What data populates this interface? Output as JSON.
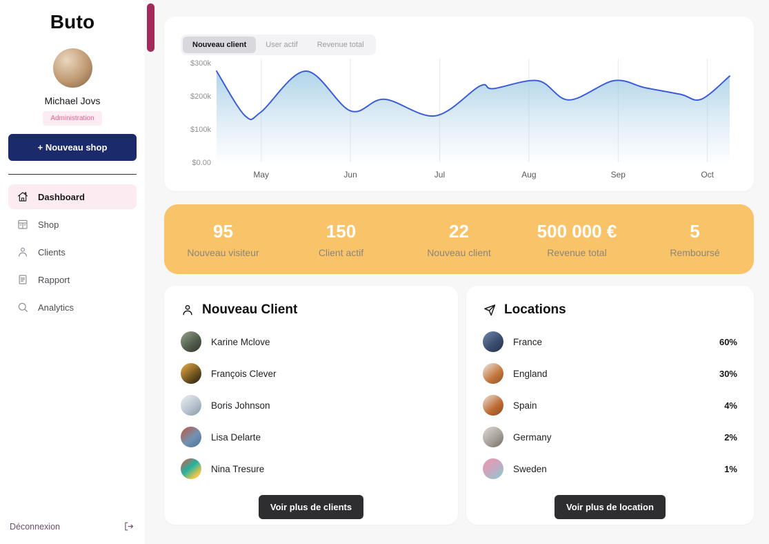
{
  "app": {
    "background": "#f7f7f8",
    "accent_navy": "#1b2a6b",
    "accent_pink": "#e9628d",
    "accent_orange": "#f9c469",
    "scrollbar_color": "#a32a5b"
  },
  "sidebar": {
    "logo": "Buto",
    "user": {
      "name": "Michael Jovs",
      "role_badge": "Administration"
    },
    "new_shop_button": "+ Nouveau shop",
    "nav": [
      {
        "label": "Dashboard",
        "icon": "home",
        "active": true
      },
      {
        "label": "Shop",
        "icon": "shop",
        "active": false
      },
      {
        "label": "Clients",
        "icon": "user",
        "active": false
      },
      {
        "label": "Rapport",
        "icon": "report",
        "active": false
      },
      {
        "label": "Analytics",
        "icon": "search",
        "active": false
      }
    ],
    "logout_label": "Déconnexion"
  },
  "chart_card": {
    "tabs": [
      {
        "label": "Nouveau client",
        "active": true
      },
      {
        "label": "User actif",
        "active": false
      },
      {
        "label": "Revenue total",
        "active": false
      }
    ]
  },
  "chart_data": {
    "type": "area",
    "title": "",
    "xlabel": "",
    "ylabel": "",
    "x_tick_labels": [
      "May",
      "Jun",
      "Jul",
      "Aug",
      "Sep",
      "Oct"
    ],
    "y_tick_labels": [
      "$300k",
      "$200k",
      "$100k",
      "$0.00"
    ],
    "y_ticks": [
      300,
      200,
      100,
      0
    ],
    "ylim": [
      0,
      300
    ],
    "xlim": [
      0.5,
      6.25
    ],
    "unit": "$ thousands",
    "grid": "vertical",
    "legend": "none",
    "line_color": "#3a5cd7",
    "fill_color": "#93c3e0",
    "points": [
      [
        0.5,
        275
      ],
      [
        0.82,
        140
      ],
      [
        1.0,
        152
      ],
      [
        1.5,
        275
      ],
      [
        2.0,
        155
      ],
      [
        2.38,
        190
      ],
      [
        2.95,
        140
      ],
      [
        3.45,
        230
      ],
      [
        3.6,
        222
      ],
      [
        4.1,
        246
      ],
      [
        4.45,
        188
      ],
      [
        4.95,
        246
      ],
      [
        5.3,
        225
      ],
      [
        5.7,
        205
      ],
      [
        5.93,
        190
      ],
      [
        6.25,
        260
      ]
    ]
  },
  "stats": [
    {
      "value": "95",
      "label": "Nouveau visiteur"
    },
    {
      "value": "150",
      "label": "Client actif"
    },
    {
      "value": "22",
      "label": "Nouveau client"
    },
    {
      "value": "500 000 €",
      "label": "Revenue total"
    },
    {
      "value": "5",
      "label": "Remboursé"
    }
  ],
  "clients_card": {
    "title": "Nouveau Client",
    "items": [
      {
        "name": "Karine Mclove",
        "avatar": "karine"
      },
      {
        "name": "François Clever",
        "avatar": "francois"
      },
      {
        "name": "Boris Johnson",
        "avatar": "boris"
      },
      {
        "name": "Lisa Delarte",
        "avatar": "lisa"
      },
      {
        "name": "Nina Tresure",
        "avatar": "nina"
      }
    ],
    "button": "Voir plus de clients"
  },
  "locations_card": {
    "title": "Locations",
    "items": [
      {
        "country": "France",
        "percent": "60%",
        "avatar": "france"
      },
      {
        "country": "England",
        "percent": "30%",
        "avatar": "england"
      },
      {
        "country": "Spain",
        "percent": "4%",
        "avatar": "spain"
      },
      {
        "country": "Germany",
        "percent": "2%",
        "avatar": "germany"
      },
      {
        "country": "Sweden",
        "percent": "1%",
        "avatar": "sweden"
      }
    ],
    "button": "Voir plus de location"
  }
}
